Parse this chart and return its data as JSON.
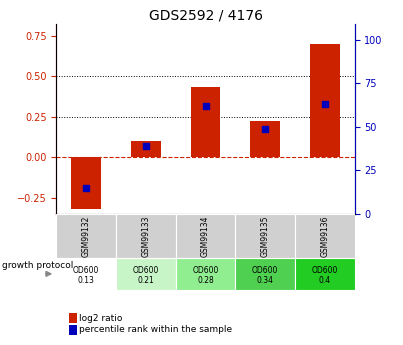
{
  "title": "GDS2592 / 4176",
  "samples": [
    "GSM99132",
    "GSM99133",
    "GSM99134",
    "GSM99135",
    "GSM99136"
  ],
  "log2_ratio": [
    -0.32,
    0.1,
    0.43,
    0.22,
    0.7
  ],
  "percentile_rank": [
    15,
    39,
    62,
    49,
    63
  ],
  "protocol_label": "growth protocol",
  "protocol_values_line1": [
    "OD600",
    "OD600",
    "OD600",
    "OD600",
    "OD600"
  ],
  "protocol_values_line2": [
    "0.13",
    "0.21",
    "0.28",
    "0.34",
    "0.4"
  ],
  "protocol_colors": [
    "#ffffff",
    "#c8f5c8",
    "#90ee90",
    "#50d050",
    "#22cc22"
  ],
  "ylim_left": [
    -0.35,
    0.82
  ],
  "ylim_right": [
    0,
    109
  ],
  "yticks_left": [
    -0.25,
    0.0,
    0.25,
    0.5,
    0.75
  ],
  "yticks_right": [
    0,
    25,
    50,
    75,
    100
  ],
  "bar_color": "#cc2200",
  "dot_color": "#0000bb",
  "dotted_line_y": [
    0.25,
    0.5
  ],
  "plot_bg_color": "#ffffff",
  "bar_width": 0.5,
  "legend_red": "log2 ratio",
  "legend_blue": "percentile rank within the sample"
}
